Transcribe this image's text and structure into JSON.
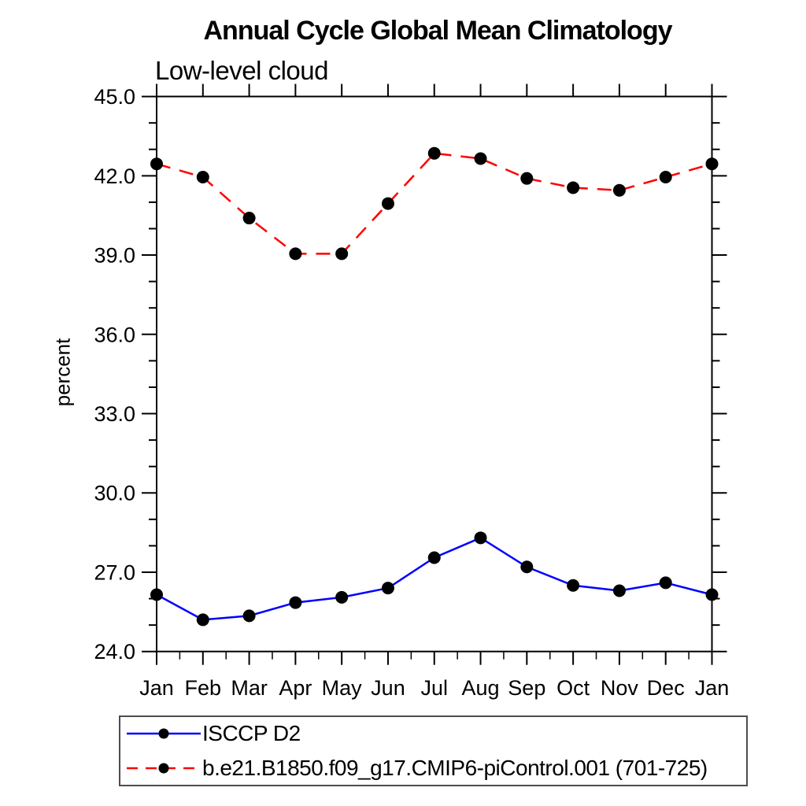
{
  "chart_data": {
    "type": "line",
    "title": "Annual Cycle Global Mean Climatology",
    "subtitle": "Low-level cloud",
    "ylabel": "percent",
    "xlabel": "",
    "x_categories": [
      "Jan",
      "Feb",
      "Mar",
      "Apr",
      "May",
      "Jun",
      "Jul",
      "Aug",
      "Sep",
      "Oct",
      "Nov",
      "Dec",
      "Jan"
    ],
    "ylim": [
      24.0,
      45.0
    ],
    "ytick_major_interval": 3.0,
    "ytick_minor_interval": 1.0,
    "ytick_labels": [
      "24.0",
      "27.0",
      "30.0",
      "33.0",
      "36.0",
      "39.0",
      "42.0",
      "45.0"
    ],
    "grid": false,
    "legend_position": "bottom",
    "axis_color": "#000000",
    "marker_shape": "filled-circle",
    "series": [
      {
        "name": "ISCCP D2",
        "line_color": "#0000ff",
        "line_style": "solid",
        "marker_color": "#000000",
        "values": [
          26.15,
          25.2,
          25.35,
          25.85,
          26.05,
          26.4,
          27.55,
          28.3,
          27.2,
          26.5,
          26.3,
          26.6,
          26.15
        ]
      },
      {
        "name": "b.e21.B1850.f09_g17.CMIP6-piControl.001 (701-725)",
        "line_color": "#ff0000",
        "line_style": "dashed",
        "marker_color": "#000000",
        "values": [
          42.45,
          41.95,
          40.4,
          39.05,
          39.05,
          40.95,
          42.85,
          42.65,
          41.9,
          41.55,
          41.45,
          41.95,
          42.45
        ]
      }
    ]
  }
}
